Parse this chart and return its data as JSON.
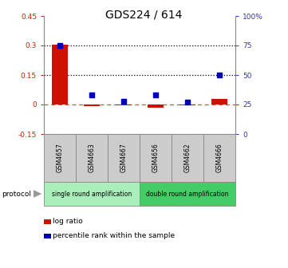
{
  "title": "GDS224 / 614",
  "samples": [
    "GSM4657",
    "GSM4663",
    "GSM4667",
    "GSM4656",
    "GSM4662",
    "GSM4666"
  ],
  "log_ratio": [
    0.305,
    -0.01,
    -0.005,
    -0.015,
    -0.005,
    0.028
  ],
  "percentile_rank": [
    75,
    33,
    28,
    33,
    27,
    50
  ],
  "ylim_left": [
    -0.15,
    0.45
  ],
  "ylim_right": [
    0,
    100
  ],
  "yticks_left": [
    -0.15,
    0.0,
    0.15,
    0.3,
    0.45
  ],
  "ytick_labels_left": [
    "-0.15",
    "0",
    "0.15",
    "0.3",
    "0.45"
  ],
  "yticks_right": [
    0,
    25,
    50,
    75,
    100
  ],
  "ytick_labels_right": [
    "0",
    "25",
    "50",
    "75",
    "100%"
  ],
  "dotted_lines": [
    0.3,
    0.15
  ],
  "dashed_line": 0.0,
  "protocol_groups": [
    {
      "label": "single round amplification",
      "count": 3,
      "color": "#aaeebb"
    },
    {
      "label": "double round amplification",
      "count": 3,
      "color": "#44cc66"
    }
  ],
  "bar_color": "#cc1100",
  "dot_color": "#0000bb",
  "left_tick_color": "#cc2200",
  "right_tick_color": "#3333bb",
  "sample_box_color": "#cccccc",
  "sample_box_edge": "#888888",
  "legend": [
    {
      "label": "log ratio",
      "color": "#cc1100"
    },
    {
      "label": "percentile rank within the sample",
      "color": "#0000bb"
    }
  ]
}
